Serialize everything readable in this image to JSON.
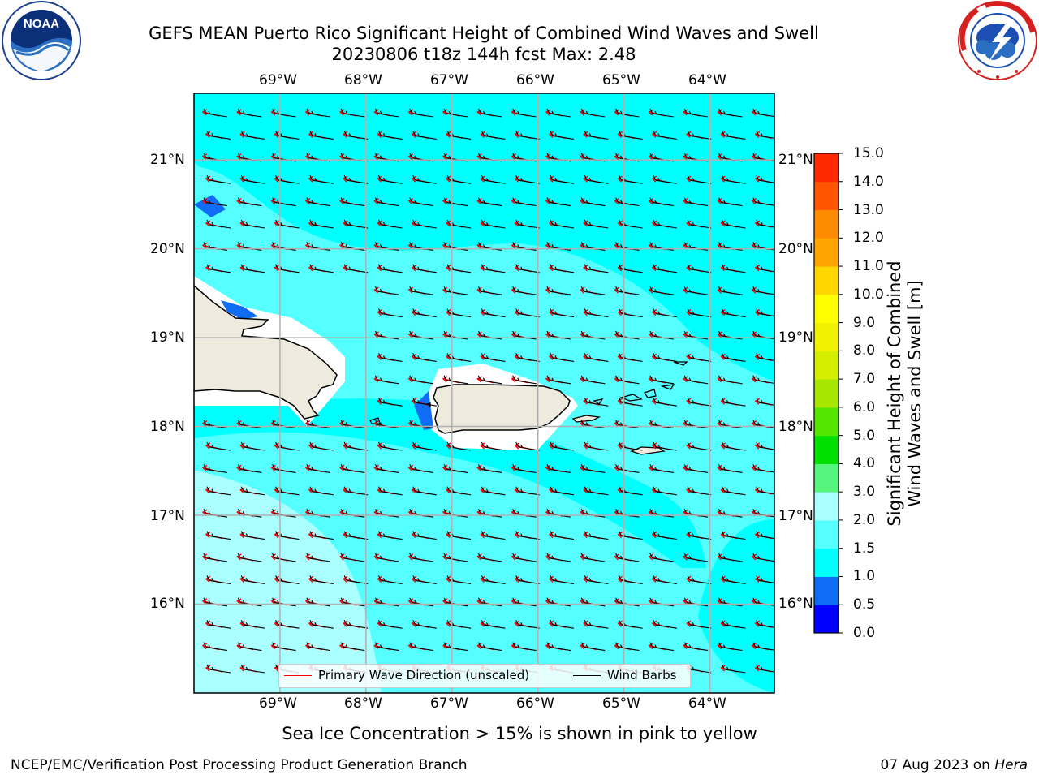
{
  "header": {
    "title_line1": "GEFS MEAN Puerto Rico Significant Height of Combined Wind Waves and Swell",
    "title_line2": "20230806 t18z 144h fcst   Max: 2.48"
  },
  "logos": {
    "left": {
      "name": "noaa-logo",
      "text": "NOAA",
      "ring_text": "NATIONAL OCEANIC AND ATMOSPHERIC ADMINISTRATION · U.S. DEPARTMENT OF COMMERCE"
    },
    "right": {
      "name": "nws-logo",
      "ring_text": "NATIONAL WEATHER SERVICE"
    }
  },
  "map": {
    "lon_labels": [
      "69°W",
      "68°W",
      "67°W",
      "66°W",
      "65°W",
      "64°W"
    ],
    "lat_labels": [
      "21°N",
      "20°N",
      "19°N",
      "18°N",
      "17°N",
      "16°N"
    ],
    "lon_values": [
      -69,
      -68,
      -67,
      -66,
      -65,
      -64
    ],
    "lat_values": [
      21,
      20,
      19,
      18,
      17,
      16
    ],
    "lon_range": [
      -70,
      -63.25
    ],
    "lat_range": [
      15.0,
      21.75
    ],
    "ocean_color": "#00ffff",
    "land_color": "#eeebde",
    "light_band_color": "#aaffff",
    "mid_band_color": "#55ffff",
    "blue_patch_color": "#0e6cf5",
    "wave_arrow_color": "#ff0000",
    "barb_color": "#000000",
    "grid_color": "#b0b0b0"
  },
  "legend": {
    "wave_label": "Primary Wave Direction (unscaled)",
    "barb_label": "Wind Barbs"
  },
  "colorbar": {
    "label_line1": "Significant Height of Combined",
    "label_line2": "Wind Waves and Swell [m]",
    "levels": [
      "0.0",
      "0.5",
      "1.0",
      "1.5",
      "2.0",
      "3.0",
      "4.0",
      "5.0",
      "6.0",
      "7.0",
      "8.0",
      "9.0",
      "10.0",
      "11.0",
      "12.0",
      "13.0",
      "14.0",
      "15.0"
    ],
    "colors": [
      "#0000ff",
      "#0e6cf5",
      "#00ffff",
      "#55ffff",
      "#aaffff",
      "#55f57d",
      "#00e000",
      "#55e600",
      "#a6e600",
      "#d4ee00",
      "#f0f200",
      "#ffff00",
      "#ffd700",
      "#ffa500",
      "#ff8c00",
      "#ff5500",
      "#ff2a00"
    ]
  },
  "footer": {
    "note": "Sea Ice Concentration > 15% is shown in pink to yellow",
    "left": "NCEP/EMC/Verification Post Processing Product Generation Branch",
    "right_prefix": "07 Aug 2023 on ",
    "right_machine": "Hera"
  }
}
